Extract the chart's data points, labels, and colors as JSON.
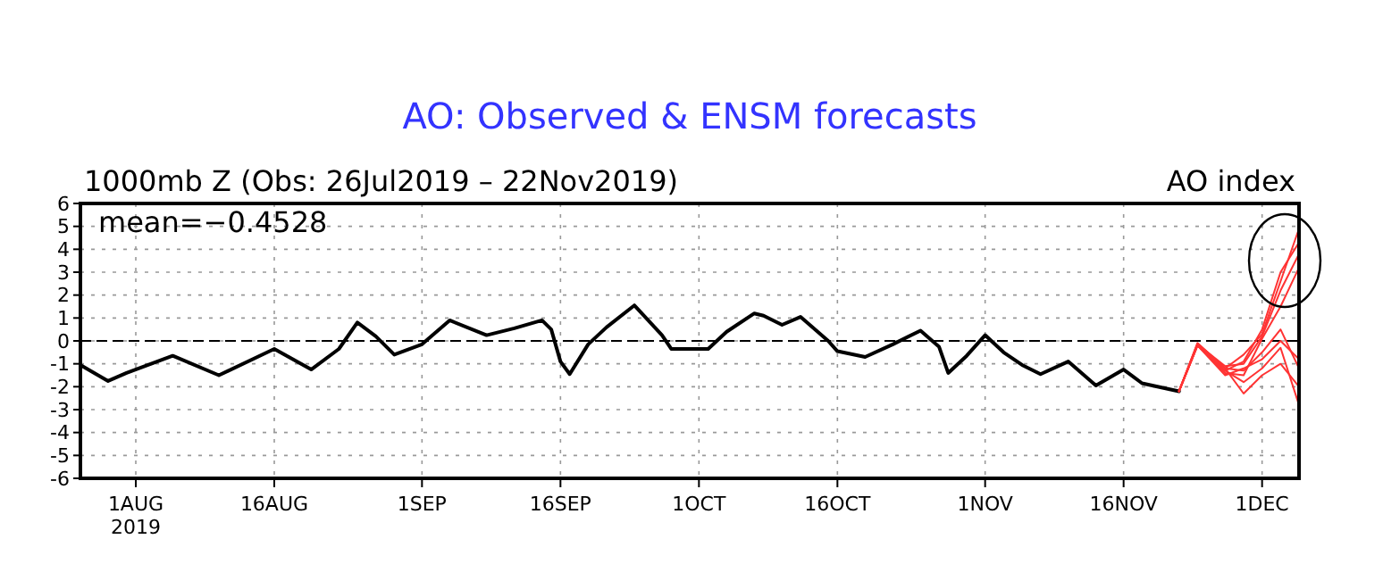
{
  "chart_data": {
    "type": "line",
    "title": "AO: Observed & ENSM forecasts",
    "subtitle": "1000mb Z (Obs: 26Jul2019 – 22Nov2019)",
    "ylabel": "AO index",
    "annotations": [
      "mean=−0.4528"
    ],
    "xlim": [
      "2019-07-26",
      "2019-12-05"
    ],
    "ylim": [
      -6,
      6
    ],
    "yticks": [
      -6,
      -5,
      -4,
      -3,
      -2,
      -1,
      0,
      1,
      2,
      3,
      4,
      5,
      6
    ],
    "xticks": [
      {
        "value": "2019-08-01",
        "label": "1AUG\n2019"
      },
      {
        "value": "2019-08-16",
        "label": "16AUG"
      },
      {
        "value": "2019-09-01",
        "label": "1SEP"
      },
      {
        "value": "2019-09-16",
        "label": "16SEP"
      },
      {
        "value": "2019-10-01",
        "label": "1OCT"
      },
      {
        "value": "2019-10-16",
        "label": "16OCT"
      },
      {
        "value": "2019-11-01",
        "label": "1NOV"
      },
      {
        "value": "2019-11-16",
        "label": "16NOV"
      },
      {
        "value": "2019-12-01",
        "label": "1DEC"
      }
    ],
    "grid": true,
    "ref_lines": [
      {
        "axis": "y",
        "value": 0,
        "line_style": "dashed",
        "color": "#000000"
      }
    ],
    "series": [
      {
        "color": "#000000",
        "x": [
          "2019-07-26",
          "2019-07-29",
          "2019-07-31",
          "2019-08-05",
          "2019-08-10",
          "2019-08-16",
          "2019-08-20",
          "2019-08-23",
          "2019-08-25",
          "2019-08-27",
          "2019-08-29",
          "2019-09-01",
          "2019-09-04",
          "2019-09-08",
          "2019-09-11",
          "2019-09-14",
          "2019-09-15",
          "2019-09-16",
          "2019-09-17",
          "2019-09-19",
          "2019-09-21",
          "2019-09-24",
          "2019-09-27",
          "2019-09-28",
          "2019-10-02",
          "2019-10-04",
          "2019-10-07",
          "2019-10-08",
          "2019-10-10",
          "2019-10-12",
          "2019-10-15",
          "2019-10-16",
          "2019-10-19",
          "2019-10-22",
          "2019-10-25",
          "2019-10-27",
          "2019-10-28",
          "2019-10-30",
          "2019-11-01",
          "2019-11-03",
          "2019-11-05",
          "2019-11-07",
          "2019-11-10",
          "2019-11-13",
          "2019-11-16",
          "2019-11-18",
          "2019-11-22"
        ],
        "values": [
          -1.05,
          -1.75,
          -1.4,
          -0.65,
          -1.5,
          -0.35,
          -1.25,
          -0.35,
          0.8,
          0.2,
          -0.6,
          -0.15,
          0.9,
          0.25,
          0.55,
          0.9,
          0.5,
          -0.9,
          -1.45,
          -0.15,
          0.6,
          1.55,
          0.25,
          -0.35,
          -0.35,
          0.4,
          1.2,
          1.1,
          0.7,
          1.05,
          0,
          -0.45,
          -0.7,
          -0.15,
          0.45,
          -0.25,
          -1.4,
          -0.65,
          0.25,
          -0.5,
          -1.05,
          -1.45,
          -0.9,
          -1.95,
          -1.25,
          -1.85,
          -2.2
        ]
      },
      {
        "color": "#ff3333",
        "x": [
          "2019-11-22",
          "2019-11-24",
          "2019-11-27",
          "2019-11-29",
          "2019-12-01",
          "2019-12-03",
          "2019-12-05"
        ],
        "values": [
          -2.2,
          -0.1,
          -1.2,
          -0.6,
          0.3,
          2.6,
          4.9
        ]
      },
      {
        "color": "#ff3333",
        "x": [
          "2019-11-22",
          "2019-11-24",
          "2019-11-27",
          "2019-11-29",
          "2019-12-01",
          "2019-12-03",
          "2019-12-05"
        ],
        "values": [
          -2.2,
          -0.2,
          -1.3,
          -0.9,
          0.5,
          3.0,
          4.3
        ]
      },
      {
        "color": "#ff3333",
        "x": [
          "2019-11-22",
          "2019-11-24",
          "2019-11-27",
          "2019-11-29",
          "2019-12-01",
          "2019-12-03",
          "2019-12-05"
        ],
        "values": [
          -2.2,
          -0.15,
          -1.1,
          -1.0,
          0.2,
          2.2,
          3.8
        ]
      },
      {
        "color": "#ff3333",
        "x": [
          "2019-11-22",
          "2019-11-24",
          "2019-11-27",
          "2019-11-29",
          "2019-12-01",
          "2019-12-03",
          "2019-12-05"
        ],
        "values": [
          -2.2,
          -0.2,
          -1.4,
          -1.5,
          0.1,
          1.5,
          3.2
        ]
      },
      {
        "color": "#ff3333",
        "x": [
          "2019-11-22",
          "2019-11-24",
          "2019-11-27",
          "2019-11-29",
          "2019-12-01",
          "2019-12-03",
          "2019-12-05"
        ],
        "values": [
          -2.2,
          -0.1,
          -1.2,
          -1.3,
          -0.5,
          0.5,
          -1.2
        ]
      },
      {
        "color": "#ff3333",
        "x": [
          "2019-11-22",
          "2019-11-24",
          "2019-11-27",
          "2019-11-29",
          "2019-12-01",
          "2019-12-03",
          "2019-12-05"
        ],
        "values": [
          -2.2,
          -0.2,
          -1.3,
          -1.8,
          -1.2,
          -0.3,
          -2.8
        ]
      },
      {
        "color": "#ff3333",
        "x": [
          "2019-11-22",
          "2019-11-24",
          "2019-11-27",
          "2019-11-29",
          "2019-12-01",
          "2019-12-03",
          "2019-12-05"
        ],
        "values": [
          -2.2,
          -0.15,
          -1.2,
          -2.3,
          -1.5,
          -1.0,
          -2.0
        ]
      },
      {
        "color": "#ff3333",
        "x": [
          "2019-11-22",
          "2019-11-24",
          "2019-11-27",
          "2019-11-29",
          "2019-12-01",
          "2019-12-03",
          "2019-12-05"
        ],
        "values": [
          -2.2,
          -0.2,
          -1.5,
          -1.2,
          -0.8,
          0.0,
          -0.8
        ]
      }
    ]
  }
}
